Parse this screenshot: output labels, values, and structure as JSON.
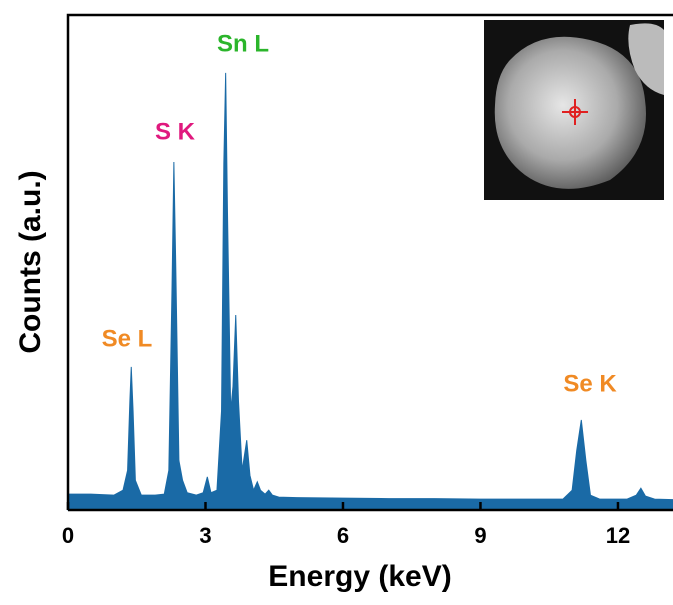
{
  "chart_data": {
    "type": "area",
    "xlabel": "Energy (keV)",
    "ylabel": "Counts (a.u.)",
    "x": [
      0,
      0.5,
      1.0,
      1.2,
      1.3,
      1.35,
      1.38,
      1.42,
      1.47,
      1.6,
      1.9,
      2.1,
      2.2,
      2.27,
      2.31,
      2.35,
      2.42,
      2.5,
      2.6,
      2.8,
      2.95,
      3.04,
      3.12,
      3.25,
      3.35,
      3.4,
      3.44,
      3.48,
      3.55,
      3.6,
      3.66,
      3.72,
      3.8,
      3.9,
      3.97,
      4.05,
      4.13,
      4.2,
      4.3,
      4.38,
      4.46,
      4.6,
      5,
      6,
      7,
      8,
      9,
      10,
      10.8,
      11.0,
      11.1,
      11.2,
      11.3,
      11.4,
      11.6,
      12.2,
      12.4,
      12.5,
      12.6,
      12.8,
      13.2
    ],
    "values": [
      3.2,
      3.2,
      3.0,
      4.0,
      8,
      22,
      28.9,
      20,
      6,
      3,
      3,
      3.2,
      8,
      45,
      70.3,
      50,
      10,
      6,
      3.5,
      3,
      3.5,
      6.7,
      3.5,
      4,
      20,
      70,
      88.3,
      60,
      20,
      25,
      39.4,
      22,
      8,
      14.1,
      7,
      4,
      5.7,
      4,
      3.2,
      4,
      3,
      2.6,
      2.5,
      2.4,
      2.3,
      2.3,
      2.2,
      2.2,
      2.2,
      4,
      12,
      18.2,
      10,
      3,
      2.2,
      2.2,
      3,
      4.4,
      2.8,
      2.2,
      2.1
    ],
    "color": "#1a6aa6",
    "xlim": [
      0,
      13.2
    ],
    "ylim": [
      0,
      100
    ],
    "xticks": [
      0,
      3,
      6,
      9,
      12
    ],
    "annotations": [
      {
        "text": "Se L",
        "color": "#f08a24"
      },
      {
        "text": "S K",
        "color": "#e0197e"
      },
      {
        "text": "Sn L",
        "color": "#2bb52b"
      },
      {
        "text": "Se K",
        "color": "#f08a24"
      }
    ]
  }
}
